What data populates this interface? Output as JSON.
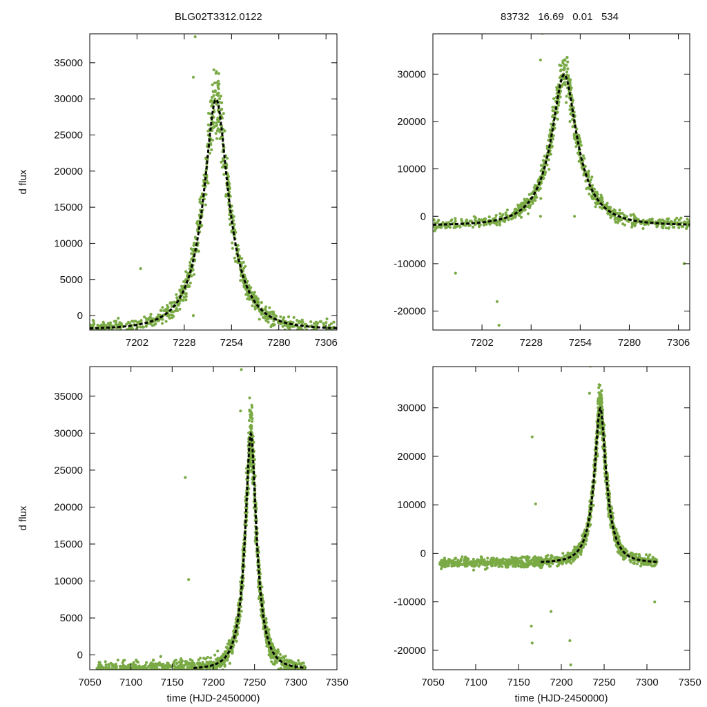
{
  "titles": {
    "left": "BLG02T3312.0122",
    "right": "83732   16.69   0.01   534"
  },
  "colors": {
    "points": "#7aaa45",
    "model": "#000000",
    "frame": "#000000"
  },
  "chart_data": [
    {
      "type": "scatter",
      "panel": "top-left",
      "ylabel": "d flux",
      "xlabel": "",
      "xlim": [
        7176,
        7312
      ],
      "ylim": [
        -2000,
        39000
      ],
      "xticks": [
        7202,
        7228,
        7254,
        7280,
        7306
      ],
      "yticks": [
        0,
        5000,
        10000,
        15000,
        20000,
        25000,
        30000,
        35000
      ],
      "model": {
        "t0": 7245.5,
        "peak": 29900,
        "base": -1900,
        "tE": 19.2,
        "u0": 0.34,
        "t_start": 7176,
        "t_end": 7312
      },
      "outliers": [
        [
          7234,
          38600
        ],
        [
          7233,
          33000
        ],
        [
          7247,
          33500
        ],
        [
          7204,
          6500
        ],
        [
          7233,
          0
        ],
        [
          7244,
          26000
        ]
      ]
    },
    {
      "type": "scatter",
      "panel": "top-right",
      "ylabel": "",
      "xlabel": "",
      "xlim": [
        7176,
        7312
      ],
      "ylim": [
        -24000,
        38500
      ],
      "xticks": [
        7202,
        7228,
        7254,
        7280,
        7306
      ],
      "yticks": [
        -20000,
        -10000,
        0,
        10000,
        20000,
        30000
      ],
      "model": {
        "t0": 7245.5,
        "peak": 29900,
        "base": -1900,
        "tE": 19.2,
        "u0": 0.34,
        "t_start": 7176,
        "t_end": 7312
      },
      "outliers": [
        [
          7234,
          38600
        ],
        [
          7233,
          33000
        ],
        [
          7247,
          33500
        ],
        [
          7210,
          -18000
        ],
        [
          7211,
          -23000
        ],
        [
          7188,
          -12000
        ],
        [
          7309,
          -10000
        ],
        [
          7233,
          0
        ],
        [
          7251,
          0
        ]
      ]
    },
    {
      "type": "scatter",
      "panel": "bottom-left",
      "ylabel": "d flux",
      "xlabel": "time (HJD-2450000)",
      "xlim": [
        7050,
        7350
      ],
      "ylim": [
        -2000,
        39000
      ],
      "xticks": [
        7050,
        7100,
        7150,
        7200,
        7250,
        7300,
        7350
      ],
      "yticks": [
        0,
        5000,
        10000,
        15000,
        20000,
        25000,
        30000,
        35000
      ],
      "model": {
        "t0": 7245.5,
        "peak": 29900,
        "base": -1900,
        "tE": 19.2,
        "u0": 0.34,
        "t_start": 7176,
        "t_end": 7312
      },
      "outliers": [
        [
          7166,
          24000
        ],
        [
          7170,
          10200
        ],
        [
          7234,
          38600
        ],
        [
          7233,
          33000
        ],
        [
          7247,
          33500
        ]
      ]
    },
    {
      "type": "scatter",
      "panel": "bottom-right",
      "ylabel": "",
      "xlabel": "time (HJD-2450000)",
      "xlim": [
        7050,
        7350
      ],
      "ylim": [
        -24000,
        38500
      ],
      "xticks": [
        7050,
        7100,
        7150,
        7200,
        7250,
        7300,
        7350
      ],
      "yticks": [
        -20000,
        -10000,
        0,
        10000,
        20000,
        30000
      ],
      "model": {
        "t0": 7245.5,
        "peak": 29900,
        "base": -1900,
        "tE": 19.2,
        "u0": 0.34,
        "t_start": 7176,
        "t_end": 7312
      },
      "outliers": [
        [
          7166,
          24000
        ],
        [
          7170,
          10200
        ],
        [
          7234,
          38600
        ],
        [
          7233,
          33000
        ],
        [
          7247,
          33500
        ],
        [
          7165,
          -15000
        ],
        [
          7166,
          -18500
        ],
        [
          7210,
          -18000
        ],
        [
          7211,
          -23000
        ],
        [
          7188,
          -12000
        ],
        [
          7309,
          -10000
        ]
      ]
    }
  ]
}
